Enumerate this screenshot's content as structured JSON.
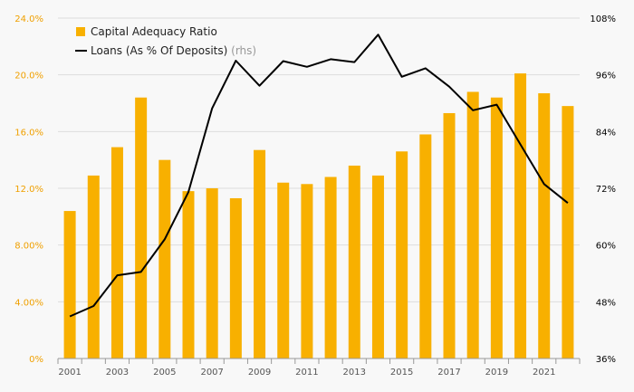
{
  "chart_data": {
    "type": "bar",
    "categories": [
      "2001",
      "2002",
      "2003",
      "2004",
      "2005",
      "2006",
      "2007",
      "2008",
      "2009",
      "2010",
      "2011",
      "2012",
      "2013",
      "2014",
      "2015",
      "2016",
      "2017",
      "2018",
      "2019",
      "2020",
      "2021",
      "2022"
    ],
    "series": [
      {
        "name": "Capital Adequacy Ratio",
        "type": "bar",
        "axis": "left",
        "values": [
          10.4,
          12.9,
          14.9,
          18.4,
          14.0,
          11.8,
          12.0,
          11.3,
          14.7,
          12.4,
          12.3,
          12.8,
          13.6,
          12.9,
          14.6,
          15.8,
          17.3,
          18.8,
          18.4,
          20.1,
          18.7,
          17.8
        ]
      },
      {
        "name": "Loans (As % Of Deposits)",
        "name_suffix": "(rhs)",
        "type": "line",
        "axis": "right",
        "values": [
          44.9,
          47.1,
          53.6,
          54.3,
          61.2,
          71.2,
          88.9,
          99.0,
          93.7,
          98.9,
          97.7,
          99.3,
          98.7,
          104.5,
          95.6,
          97.4,
          93.5,
          88.5,
          89.7,
          81.3,
          72.9,
          68.9
        ]
      }
    ],
    "x_tick_labels": [
      "2001",
      "2003",
      "2005",
      "2007",
      "2009",
      "2011",
      "2013",
      "2015",
      "2017",
      "2019",
      "2021"
    ],
    "left_axis": {
      "ticks": [
        "0%",
        "4.00%",
        "8.00%",
        "12.0%",
        "16.0%",
        "20.0%",
        "24.0%"
      ],
      "ylim": [
        0,
        24
      ]
    },
    "right_axis": {
      "ticks": [
        "36%",
        "48%",
        "60%",
        "72%",
        "84%",
        "96%",
        "108%"
      ],
      "ylim": [
        36,
        108
      ]
    },
    "grid": "horizontal",
    "legend_position": "top-left",
    "colors": {
      "bars": "#f8b000",
      "line": "#000000",
      "left_ticks": "#f0a000",
      "right_ticks": "#000000",
      "grid": "#dddddd",
      "x_ticks": "#555555"
    }
  }
}
